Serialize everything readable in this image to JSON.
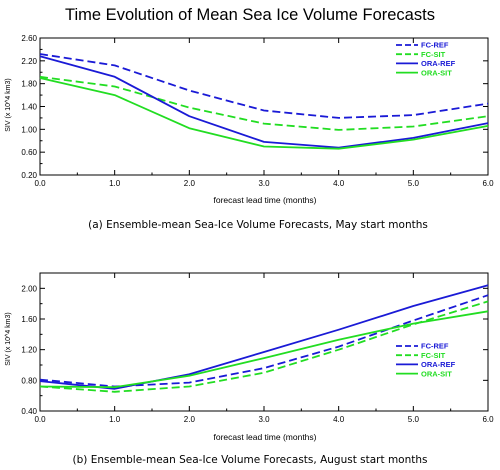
{
  "title": "Time Evolution of Mean Sea Ice Volume Forecasts",
  "colors": {
    "blue": "#1a1ad6",
    "green": "#22dd22"
  },
  "chart_data": [
    {
      "type": "line",
      "caption": "(a) Ensemble-mean Sea-Ice Volume Forecasts, May start months",
      "xlabel": "forecast lead time (months)",
      "ylabel": "SIV (x 10^4 km3)",
      "x": [
        0,
        1,
        2,
        3,
        4,
        5,
        6
      ],
      "xlim": [
        0,
        6
      ],
      "ylim": [
        0.2,
        2.6
      ],
      "xticks": [
        "0.0",
        "1.0",
        "2.0",
        "3.0",
        "4.0",
        "5.0",
        "6.0"
      ],
      "yticks": [
        "0.20",
        "0.60",
        "1.00",
        "1.40",
        "1.80",
        "2.20",
        "2.60"
      ],
      "legend": "top-right",
      "series": [
        {
          "name": "FC-REF",
          "color": "blue",
          "dashed": true,
          "values": [
            2.32,
            2.12,
            1.68,
            1.33,
            1.2,
            1.25,
            1.45
          ]
        },
        {
          "name": "FC-SIT",
          "color": "green",
          "dashed": true,
          "values": [
            1.92,
            1.75,
            1.38,
            1.1,
            0.99,
            1.05,
            1.23
          ]
        },
        {
          "name": "ORA-REF",
          "color": "blue",
          "dashed": false,
          "values": [
            2.28,
            1.92,
            1.23,
            0.78,
            0.68,
            0.85,
            1.11
          ]
        },
        {
          "name": "ORA-SIT",
          "color": "green",
          "dashed": false,
          "values": [
            1.9,
            1.6,
            1.02,
            0.7,
            0.66,
            0.82,
            1.06
          ]
        }
      ]
    },
    {
      "type": "line",
      "caption": "(b) Ensemble-mean Sea-Ice Volume Forecasts, August start months",
      "xlabel": "forecast lead time (months)",
      "ylabel": "SIV (x 10^4 km3)",
      "x": [
        0,
        1,
        2,
        3,
        4,
        5,
        6
      ],
      "xlim": [
        0,
        6
      ],
      "ylim": [
        0.4,
        2.2
      ],
      "xticks": [
        "0.0",
        "1.0",
        "2.0",
        "3.0",
        "4.0",
        "5.0",
        "6.0"
      ],
      "yticks": [
        "0.40",
        "0.80",
        "1.20",
        "1.60",
        "2.00"
      ],
      "legend": "right",
      "series": [
        {
          "name": "FC-REF",
          "color": "blue",
          "dashed": true,
          "values": [
            0.81,
            0.72,
            0.77,
            0.96,
            1.24,
            1.58,
            1.91
          ]
        },
        {
          "name": "FC-SIT",
          "color": "green",
          "dashed": true,
          "values": [
            0.72,
            0.65,
            0.72,
            0.9,
            1.2,
            1.53,
            1.83
          ]
        },
        {
          "name": "ORA-REF",
          "color": "blue",
          "dashed": false,
          "values": [
            0.79,
            0.69,
            0.88,
            1.17,
            1.46,
            1.77,
            2.04
          ]
        },
        {
          "name": "ORA-SIT",
          "color": "green",
          "dashed": false,
          "values": [
            0.72,
            0.71,
            0.86,
            1.09,
            1.33,
            1.54,
            1.7
          ]
        }
      ]
    }
  ]
}
